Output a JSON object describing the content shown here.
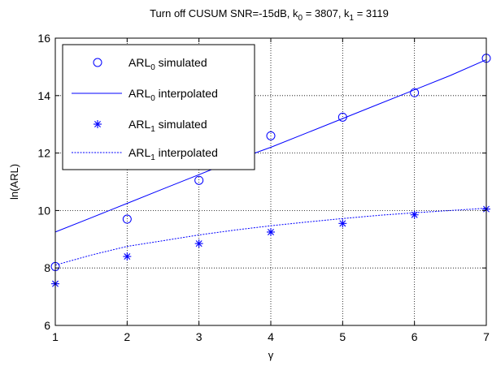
{
  "chart_data": {
    "type": "line",
    "title": {
      "prefix": "Turn off CUSUM SNR=-15dB, k",
      "k0_sub": "0",
      "k0_rest": " = 3807, k",
      "k1_sub": "1",
      "k1_rest": " = 3119"
    },
    "xlabel": "γ",
    "ylabel": "ln(ARL)",
    "xlim": [
      1,
      7
    ],
    "ylim": [
      6,
      16
    ],
    "xticks": [
      1,
      2,
      3,
      4,
      5,
      6,
      7
    ],
    "yticks": [
      6,
      8,
      10,
      12,
      14,
      16
    ],
    "grid": true,
    "legend_position": "top-left",
    "colors": {
      "series": "#0000ff",
      "axis": "#000000",
      "grid": "#000000",
      "legend_border": "#000000"
    },
    "series": [
      {
        "label": {
          "base": "ARL",
          "sub": "0",
          "rest": " simulated"
        },
        "style": "circle-marker",
        "x": [
          1,
          2,
          3,
          4,
          5,
          6,
          7
        ],
        "y": [
          8.05,
          9.7,
          11.05,
          12.6,
          13.25,
          14.1,
          15.3
        ]
      },
      {
        "label": {
          "base": "ARL",
          "sub": "0",
          "rest": " interpolated"
        },
        "style": "solid-line",
        "x": [
          1,
          1.5,
          2,
          2.5,
          3,
          3.5,
          4,
          4.5,
          5,
          5.5,
          6,
          6.5,
          7
        ],
        "y": [
          9.25,
          9.75,
          10.25,
          10.75,
          11.25,
          11.75,
          12.2,
          12.7,
          13.2,
          13.7,
          14.2,
          14.7,
          15.25
        ]
      },
      {
        "label": {
          "base": "ARL",
          "sub": "1",
          "rest": " simulated"
        },
        "style": "star-marker",
        "x": [
          1,
          2,
          3,
          4,
          5,
          6,
          7
        ],
        "y": [
          7.45,
          8.4,
          8.85,
          9.25,
          9.55,
          9.85,
          10.05
        ]
      },
      {
        "label": {
          "base": "ARL",
          "sub": "1",
          "rest": " interpolated"
        },
        "style": "dashed-line",
        "x": [
          1,
          1.5,
          2,
          2.5,
          3,
          3.5,
          4,
          4.5,
          5,
          5.5,
          6,
          6.5,
          7
        ],
        "y": [
          8.1,
          8.45,
          8.75,
          8.95,
          9.15,
          9.32,
          9.47,
          9.6,
          9.72,
          9.83,
          9.92,
          10.0,
          10.08
        ]
      }
    ]
  }
}
